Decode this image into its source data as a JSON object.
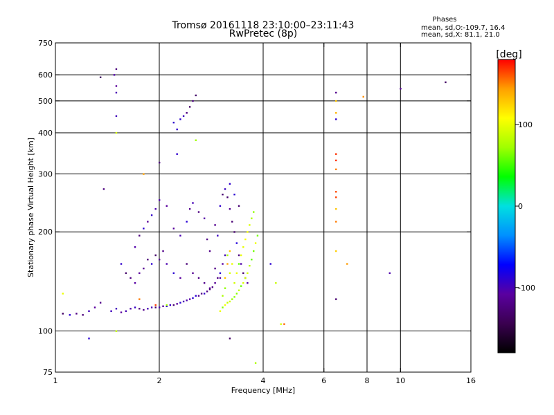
{
  "chart_data": {
    "type": "scatter",
    "title": "Tromsø 20161118 23:10:00–23:11:43",
    "subtitle": "RwPretec (8p)",
    "stats": {
      "heading": "Phases",
      "line1": "mean, sd,O:-109.7, 16.4",
      "line2": "mean, sd,X:  81.1, 21.0"
    },
    "xlabel": "Frequency [MHz]",
    "ylabel": "Stationary phase Virtual Height [km]",
    "x_scale": "log",
    "y_scale": "log",
    "xlim": [
      1,
      16
    ],
    "ylim": [
      75,
      750
    ],
    "x_ticks": [
      1,
      2,
      4,
      6,
      8,
      10,
      16
    ],
    "x_tick_labels": [
      "1",
      "2",
      "4",
      "6",
      "8",
      "10",
      "16"
    ],
    "y_ticks": [
      75,
      100,
      200,
      300,
      400,
      500,
      600,
      750
    ],
    "y_tick_labels": [
      "75",
      "100",
      "200",
      "300",
      "400",
      "500",
      "600",
      "750"
    ],
    "vertical_grid": [
      2,
      4,
      6,
      8,
      10
    ],
    "horizontal_grid": [
      100,
      200,
      300,
      400,
      500,
      600
    ],
    "colorbar": {
      "label": "[deg]",
      "range": [
        -180,
        180
      ],
      "ticks": [
        100,
        0,
        -100
      ],
      "tick_labels": [
        "100",
        "0",
        "-100"
      ],
      "stops": [
        "#000000",
        "#3a0050",
        "#5a00a0",
        "#0000ff",
        "#0090ff",
        "#00e0e0",
        "#00ff00",
        "#a0ff00",
        "#ffff00",
        "#ffa000",
        "#ff0000"
      ]
    },
    "series": [
      {
        "trace": "o-mode (blue/purple)",
        "phase": -110,
        "points": [
          [
            1.05,
            113
          ],
          [
            1.1,
            112
          ],
          [
            1.15,
            113
          ],
          [
            1.2,
            112
          ],
          [
            1.25,
            115
          ],
          [
            1.3,
            118
          ],
          [
            1.35,
            122
          ],
          [
            1.45,
            115
          ],
          [
            1.5,
            117
          ],
          [
            1.55,
            114
          ],
          [
            1.6,
            115
          ],
          [
            1.65,
            117
          ],
          [
            1.7,
            118
          ],
          [
            1.75,
            117
          ],
          [
            1.8,
            116
          ],
          [
            1.85,
            117
          ],
          [
            1.9,
            118
          ],
          [
            1.95,
            118
          ],
          [
            2.0,
            118
          ],
          [
            2.05,
            119
          ],
          [
            2.1,
            119
          ],
          [
            2.15,
            120
          ],
          [
            2.2,
            120
          ],
          [
            2.25,
            121
          ],
          [
            2.3,
            122
          ],
          [
            2.35,
            123
          ],
          [
            2.4,
            124
          ],
          [
            2.45,
            125
          ],
          [
            2.5,
            126
          ],
          [
            2.55,
            128
          ],
          [
            2.6,
            128
          ],
          [
            2.65,
            130
          ],
          [
            2.7,
            130
          ],
          [
            2.75,
            132
          ],
          [
            2.8,
            134
          ],
          [
            2.85,
            136
          ],
          [
            2.9,
            140
          ],
          [
            2.95,
            145
          ],
          [
            3.0,
            150
          ],
          [
            3.05,
            160
          ],
          [
            3.1,
            170
          ],
          [
            1.55,
            160
          ],
          [
            1.6,
            150
          ],
          [
            1.65,
            145
          ],
          [
            1.7,
            140
          ],
          [
            1.75,
            150
          ],
          [
            1.8,
            155
          ],
          [
            1.85,
            165
          ],
          [
            1.9,
            160
          ],
          [
            1.95,
            170
          ],
          [
            2.0,
            165
          ],
          [
            2.05,
            175
          ],
          [
            2.1,
            160
          ],
          [
            2.2,
            150
          ],
          [
            2.3,
            145
          ],
          [
            2.4,
            160
          ],
          [
            2.5,
            150
          ],
          [
            2.6,
            145
          ],
          [
            2.7,
            140
          ],
          [
            2.8,
            135
          ],
          [
            2.9,
            155
          ],
          [
            3.0,
            145
          ],
          [
            1.7,
            180
          ],
          [
            1.75,
            195
          ],
          [
            1.8,
            205
          ],
          [
            1.85,
            215
          ],
          [
            1.9,
            225
          ],
          [
            1.95,
            235
          ],
          [
            2.0,
            250
          ],
          [
            2.1,
            240
          ],
          [
            2.2,
            205
          ],
          [
            2.3,
            195
          ],
          [
            2.4,
            215
          ],
          [
            2.45,
            235
          ],
          [
            2.5,
            245
          ],
          [
            2.6,
            230
          ],
          [
            2.7,
            220
          ],
          [
            2.75,
            190
          ],
          [
            2.8,
            175
          ],
          [
            2.9,
            210
          ],
          [
            2.95,
            195
          ],
          [
            3.0,
            240
          ],
          [
            3.05,
            260
          ],
          [
            3.1,
            270
          ],
          [
            3.15,
            255
          ],
          [
            3.2,
            235
          ],
          [
            3.25,
            215
          ],
          [
            3.3,
            200
          ],
          [
            3.35,
            185
          ],
          [
            3.4,
            170
          ],
          [
            3.45,
            160
          ],
          [
            3.5,
            150
          ],
          [
            3.55,
            145
          ],
          [
            3.6,
            140
          ],
          [
            3.4,
            240
          ],
          [
            3.3,
            260
          ],
          [
            3.2,
            280
          ],
          [
            2.2,
            430
          ],
          [
            2.25,
            410
          ],
          [
            2.3,
            440
          ],
          [
            2.35,
            450
          ],
          [
            2.4,
            460
          ],
          [
            2.45,
            480
          ],
          [
            2.5,
            500
          ],
          [
            2.55,
            520
          ],
          [
            1.35,
            590
          ],
          [
            1.48,
            600
          ],
          [
            1.5,
            625
          ],
          [
            1.5,
            450
          ],
          [
            1.5,
            555
          ],
          [
            1.5,
            530
          ],
          [
            1.38,
            270
          ],
          [
            2.25,
            345
          ],
          [
            2.0,
            325
          ],
          [
            6.5,
            530
          ],
          [
            6.5,
            440
          ],
          [
            6.5,
            125
          ],
          [
            10.0,
            545
          ],
          [
            13.5,
            570
          ],
          [
            4.2,
            160
          ],
          [
            9.3,
            150
          ],
          [
            1.25,
            95
          ],
          [
            3.2,
            95
          ]
        ]
      },
      {
        "trace": "x-mode (green/yellow)",
        "phase": 81,
        "points": [
          [
            3.0,
            115
          ],
          [
            3.05,
            118
          ],
          [
            3.1,
            120
          ],
          [
            3.15,
            122
          ],
          [
            3.2,
            123
          ],
          [
            3.25,
            125
          ],
          [
            3.3,
            127
          ],
          [
            3.35,
            130
          ],
          [
            3.4,
            133
          ],
          [
            3.45,
            137
          ],
          [
            3.5,
            140
          ],
          [
            3.55,
            145
          ],
          [
            3.6,
            150
          ],
          [
            3.65,
            158
          ],
          [
            3.7,
            165
          ],
          [
            3.75,
            175
          ],
          [
            3.8,
            185
          ],
          [
            3.85,
            195
          ],
          [
            3.3,
            140
          ],
          [
            3.35,
            150
          ],
          [
            3.4,
            160
          ],
          [
            3.45,
            170
          ],
          [
            3.5,
            180
          ],
          [
            3.55,
            190
          ],
          [
            3.6,
            200
          ],
          [
            3.65,
            210
          ],
          [
            3.7,
            220
          ],
          [
            3.75,
            230
          ],
          [
            3.2,
            150
          ],
          [
            3.25,
            160
          ],
          [
            3.15,
            170
          ],
          [
            3.1,
            135
          ],
          [
            3.05,
            128
          ],
          [
            1.05,
            130
          ],
          [
            1.5,
            100
          ],
          [
            2.1,
            120
          ],
          [
            4.35,
            140
          ],
          [
            4.5,
            105
          ],
          [
            2.55,
            380
          ],
          [
            1.5,
            400
          ],
          [
            3.8,
            80
          ]
        ]
      },
      {
        "trace": "orange",
        "phase": 145,
        "points": [
          [
            6.5,
            500
          ],
          [
            6.5,
            460
          ],
          [
            6.5,
            345
          ],
          [
            6.5,
            330
          ],
          [
            6.5,
            310
          ],
          [
            6.5,
            265
          ],
          [
            6.5,
            255
          ],
          [
            6.5,
            235
          ],
          [
            6.5,
            215
          ],
          [
            6.5,
            175
          ],
          [
            7.0,
            160
          ],
          [
            7.8,
            515
          ],
          [
            4.6,
            105
          ],
          [
            1.95,
            120
          ],
          [
            1.8,
            300
          ],
          [
            3.1,
            145
          ],
          [
            3.15,
            160
          ],
          [
            3.2,
            175
          ],
          [
            1.75,
            125
          ]
        ]
      }
    ]
  }
}
